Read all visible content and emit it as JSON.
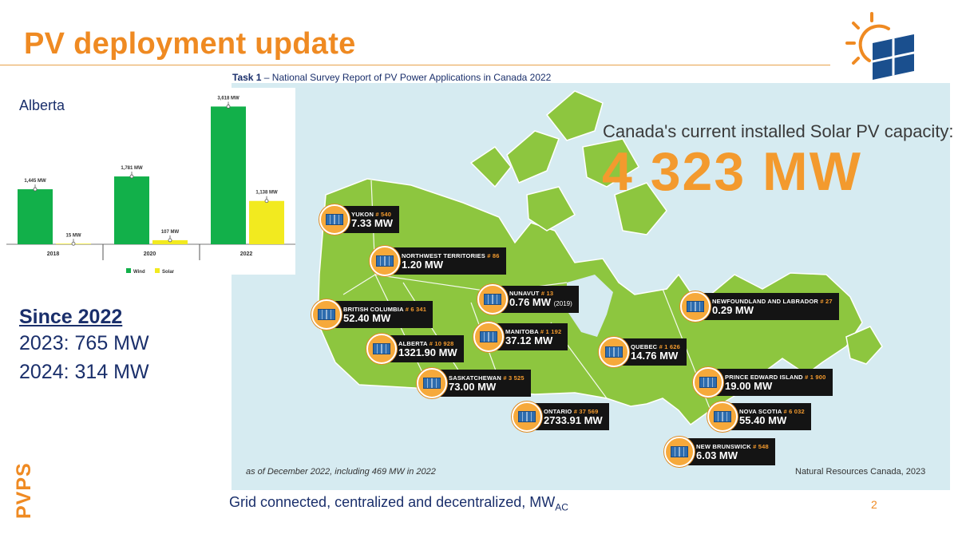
{
  "slide": {
    "title": "PV deployment update",
    "subtitle_bold": "Task 1",
    "subtitle_rest": " – National Survey Report of PV Power Applications in Canada 2022",
    "page_number": "2",
    "side_label": "PVPS",
    "footer_main": "Grid connected, centralized and decentralized, MW",
    "footer_sub": "AC"
  },
  "alberta": {
    "region_label": "Alberta"
  },
  "since": {
    "heading": "Since 2022",
    "line1": "2023: 765 MW",
    "line2": "2024: 314 MW"
  },
  "chart_data": {
    "type": "bar",
    "title": "Alberta",
    "categories": [
      "2018",
      "2020",
      "2022"
    ],
    "series": [
      {
        "name": "Wind",
        "values": [
          1445,
          1781,
          3618
        ],
        "labels": [
          "1,445 MW",
          "1,781 MW",
          "3,618 MW"
        ],
        "color": "#12b04a"
      },
      {
        "name": "Solar",
        "values": [
          15,
          107,
          1138
        ],
        "labels": [
          "15 MW",
          "107 MW",
          "1,138 MW"
        ],
        "color": "#f2ea1f"
      }
    ],
    "ylim": [
      0,
      3900
    ],
    "legend_position": "bottom"
  },
  "map": {
    "headline": "Canada's current installed Solar PV capacity:",
    "total": "4 323 MW",
    "footnote_left": "as of December 2022, including 469 MW in 2022",
    "footnote_right": "Natural Resources Canada, 2023",
    "provinces": [
      {
        "name": "YUKON",
        "count": "# 540",
        "value": "7.33 MW",
        "year": ""
      },
      {
        "name": "NORTHWEST TERRITORIES",
        "count": "# 86",
        "value": "1.20 MW",
        "year": ""
      },
      {
        "name": "NUNAVUT",
        "count": "# 13",
        "value": "0.76 MW",
        "year": "(2019)"
      },
      {
        "name": "BRITISH COLUMBIA",
        "count": "# 6 341",
        "value": "52.40 MW",
        "year": ""
      },
      {
        "name": "ALBERTA",
        "count": "# 10 928",
        "value": "1321.90 MW",
        "year": ""
      },
      {
        "name": "MANITOBA",
        "count": "# 1 192",
        "value": "37.12 MW",
        "year": ""
      },
      {
        "name": "SASKATCHEWAN",
        "count": "# 3 525",
        "value": "73.00 MW",
        "year": ""
      },
      {
        "name": "ONTARIO",
        "count": "# 37 569",
        "value": "2733.91 MW",
        "year": ""
      },
      {
        "name": "QUEBEC",
        "count": "# 1 626",
        "value": "14.76 MW",
        "year": ""
      },
      {
        "name": "NEWFOUNDLAND AND LABRADOR",
        "count": "# 27",
        "value": "0.29 MW",
        "year": ""
      },
      {
        "name": "PRINCE EDWARD ISLAND",
        "count": "# 1 900",
        "value": "19.00 MW",
        "year": ""
      },
      {
        "name": "NOVA SCOTIA",
        "count": "# 6 032",
        "value": "55.40 MW",
        "year": ""
      },
      {
        "name": "NEW BRUNSWICK",
        "count": "# 548",
        "value": "6.03 MW",
        "year": ""
      }
    ]
  },
  "colors": {
    "accent": "#ef8a22",
    "navy": "#1a2f6b",
    "map_bg": "#d6ebf1",
    "land": "#8dc63f"
  }
}
